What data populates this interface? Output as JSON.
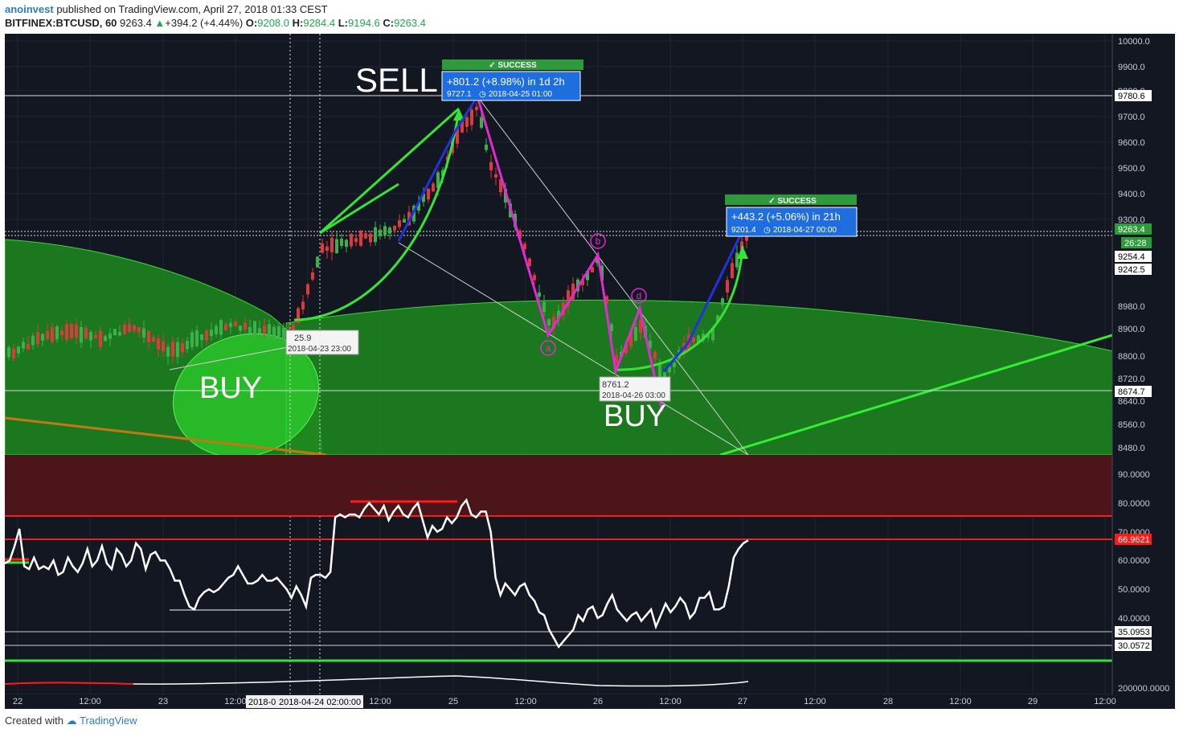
{
  "header": {
    "author": "anoinvest",
    "published": "published on TradingView.com, April 27, 2018 01:33 CEST",
    "symbol": "BITFINEX:BTCUSD, 60",
    "last": "9263.4",
    "change": "+394.2 (+4.44%)",
    "open_label": "O:",
    "open": "9208.0",
    "high_label": "H:",
    "high": "9284.4",
    "low_label": "L:",
    "low": "9194.6",
    "close_label": "C:",
    "close": "9263.4"
  },
  "footer": {
    "created_with": "Created with",
    "brand": "TradingView"
  },
  "chart_data": [
    {
      "type": "candlestick",
      "series_name": "BITFINEX:BTCUSD, 60",
      "price_axis_ticks": [
        "10000.0",
        "9900.0",
        "9800.0",
        "9700.0",
        "9600.0",
        "9500.0",
        "9400.0",
        "9300.0",
        "8980.0",
        "8900.0",
        "8800.0",
        "8720.0",
        "8640.0",
        "8560.0",
        "8480.0"
      ],
      "axis_price_labels": [
        "9780.6",
        "9263.4",
        "26:28",
        "9254.4",
        "9242.5",
        "8674.7"
      ],
      "time_axis_ticks": [
        "22",
        "12:00",
        "23",
        "12:00",
        "12:00",
        "25",
        "12:00",
        "26",
        "12:00",
        "27",
        "12:00",
        "28",
        "12:00",
        "29",
        "12:00"
      ],
      "time_axis_cursor_labels": [
        "2018-0",
        "2018-04-24 02:00:00"
      ],
      "ohlc_last": {
        "open": 9208.0,
        "high": 9284.4,
        "low": 9194.6,
        "close": 9263.4,
        "change": 394.2,
        "change_pct": 4.44
      },
      "annotations": {
        "sell_text": "SELL",
        "buy_text_1": "BUY",
        "buy_text_2": "BUY",
        "success_1": "SUCCESS",
        "success_1_main": "+801.2 (+8.98%) in 1d 2h",
        "success_1_sub": "9727.1",
        "success_1_time": "2018-04-25  01:00",
        "success_2": "SUCCESS",
        "success_2_main": "+443.2 (+5.06%) in 21h",
        "success_2_sub": "9201.4",
        "success_2_time": "2018-04-27  00:00",
        "low_1_value": "25.9",
        "low_1_time": "2018-04-23 23:00",
        "low_2_value": "8761.2",
        "low_2_time": "2018-04-26 03:00",
        "wave_a": "a",
        "wave_b": "b",
        "wave_d": "d"
      }
    },
    {
      "type": "line",
      "series_name": "RSI",
      "axis_ticks": [
        "90.0000",
        "80.0000",
        "70.0000",
        "60.0000",
        "50.0000",
        "40.0000"
      ],
      "level_labels": [
        "66.9621",
        "35.0953",
        "30.0572"
      ],
      "ylim": [
        25,
        95
      ],
      "values": [
        59,
        60,
        65,
        71,
        58,
        57,
        61,
        57,
        58,
        57,
        60,
        55,
        56,
        61,
        58,
        56,
        59,
        64,
        58,
        60,
        65,
        59,
        57,
        64,
        62,
        58,
        60,
        66,
        64,
        57,
        62,
        63,
        60,
        60,
        57,
        53,
        53,
        48,
        44,
        43,
        47,
        49,
        50,
        49,
        50,
        52,
        54,
        55,
        58,
        55,
        52,
        52,
        53,
        55,
        53,
        53,
        54,
        52,
        50,
        47,
        51,
        48,
        44,
        54,
        55,
        55,
        54,
        56,
        75,
        76,
        75,
        76,
        76,
        75,
        78,
        80,
        78,
        76,
        79,
        74,
        77,
        79,
        76,
        75,
        78,
        80,
        74,
        68,
        72,
        70,
        71,
        75,
        73,
        75,
        79,
        81,
        76,
        75,
        77,
        77,
        70,
        54,
        48,
        52,
        50,
        48,
        51,
        52,
        48,
        46,
        42,
        41,
        36,
        33,
        30,
        32,
        34,
        36,
        41,
        39,
        43,
        44,
        40,
        41,
        45,
        48,
        43,
        41,
        39,
        41,
        42,
        39,
        41,
        43,
        37,
        41,
        45,
        42,
        44,
        47,
        45,
        40,
        42,
        47,
        47,
        49,
        43,
        43,
        44,
        51,
        61,
        64,
        66,
        67
      ]
    },
    {
      "type": "line",
      "series_name": "Volume",
      "axis_ticks": [
        "200000.0000"
      ]
    }
  ]
}
